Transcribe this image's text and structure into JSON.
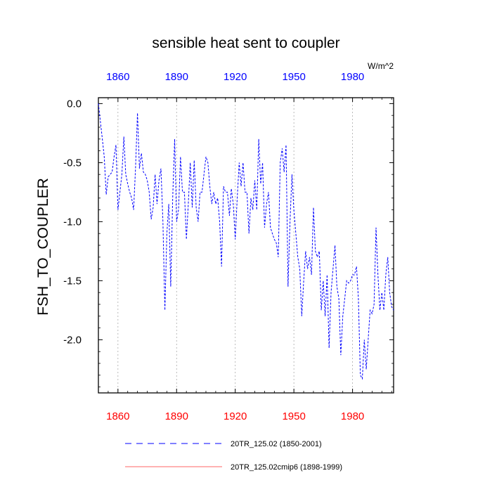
{
  "chart_data": {
    "type": "line",
    "title": "sensible heat sent to coupler",
    "units": "W/m^2",
    "ylabel": "FSH_TO_COUPLER",
    "xlabel": "",
    "xlim": [
      1850,
      2001
    ],
    "ylim": [
      -2.45,
      0.05
    ],
    "x_ticks": [
      1860,
      1890,
      1920,
      1950,
      1980
    ],
    "x_tick_labels": [
      "1860",
      "1890",
      "1920",
      "1950",
      "1980"
    ],
    "y_ticks": [
      0.0,
      -0.5,
      -1.0,
      -1.5,
      -2.0
    ],
    "y_tick_labels": [
      "0.0",
      "-0.5",
      "-1.0",
      "-1.5",
      "-2.0"
    ],
    "grid": "vertical dotted at x ticks",
    "top_tick_color": "#0000ff",
    "bottom_tick_color": "#ff0000",
    "series": [
      {
        "name": "20TR_125.02 (1850-2001)",
        "color": "#0000ff",
        "style": "dashed",
        "x": [
          1850,
          1851,
          1852,
          1853,
          1854,
          1855,
          1856,
          1857,
          1858,
          1859,
          1860,
          1861,
          1862,
          1863,
          1864,
          1865,
          1866,
          1867,
          1868,
          1869,
          1870,
          1871,
          1872,
          1873,
          1874,
          1875,
          1876,
          1877,
          1878,
          1879,
          1880,
          1881,
          1882,
          1883,
          1884,
          1885,
          1886,
          1887,
          1888,
          1889,
          1890,
          1891,
          1892,
          1893,
          1894,
          1895,
          1896,
          1897,
          1898,
          1899,
          1900,
          1901,
          1902,
          1903,
          1904,
          1905,
          1906,
          1907,
          1908,
          1909,
          1910,
          1911,
          1912,
          1913,
          1914,
          1915,
          1916,
          1917,
          1918,
          1919,
          1920,
          1921,
          1922,
          1923,
          1924,
          1925,
          1926,
          1927,
          1928,
          1929,
          1930,
          1931,
          1932,
          1933,
          1934,
          1935,
          1936,
          1937,
          1938,
          1939,
          1940,
          1941,
          1942,
          1943,
          1944,
          1945,
          1946,
          1947,
          1948,
          1949,
          1950,
          1951,
          1952,
          1953,
          1954,
          1955,
          1956,
          1957,
          1958,
          1959,
          1960,
          1961,
          1962,
          1963,
          1964,
          1965,
          1966,
          1967,
          1968,
          1969,
          1970,
          1971,
          1972,
          1973,
          1974,
          1975,
          1976,
          1977,
          1978,
          1979,
          1980,
          1981,
          1982,
          1983,
          1984,
          1985,
          1986,
          1987,
          1988,
          1989,
          1990,
          1991,
          1992,
          1993,
          1994,
          1995,
          1996,
          1997,
          1998,
          1999,
          2000,
          2001
        ],
        "values": [
          0.0,
          -0.15,
          -0.3,
          -0.45,
          -0.77,
          -0.62,
          -0.6,
          -0.58,
          -0.45,
          -0.35,
          -0.9,
          -0.75,
          -0.6,
          -0.28,
          -0.6,
          -0.68,
          -0.75,
          -0.8,
          -0.9,
          -0.55,
          -0.08,
          -0.55,
          -0.42,
          -0.58,
          -0.6,
          -0.65,
          -0.75,
          -0.98,
          -0.88,
          -0.6,
          -0.85,
          -0.65,
          -0.55,
          -1.0,
          -1.75,
          -1.1,
          -0.85,
          -1.55,
          -0.8,
          -0.3,
          -1.0,
          -0.9,
          -0.45,
          -0.75,
          -0.75,
          -1.15,
          -0.85,
          -0.5,
          -0.88,
          -0.48,
          -0.88,
          -1.0,
          -0.75,
          -0.75,
          -0.6,
          -0.45,
          -0.5,
          -0.7,
          -0.85,
          -0.75,
          -0.85,
          -0.8,
          -1.0,
          -1.38,
          -0.7,
          -0.75,
          -0.75,
          -0.95,
          -0.72,
          -0.85,
          -1.15,
          -0.8,
          -0.5,
          -0.7,
          -0.5,
          -0.75,
          -0.75,
          -1.1,
          -0.8,
          -0.9,
          -0.65,
          -0.9,
          -0.3,
          -0.68,
          -0.5,
          -1.05,
          -0.85,
          -0.75,
          -1.05,
          -1.1,
          -1.15,
          -1.18,
          -1.3,
          -0.5,
          -0.38,
          -0.58,
          -0.35,
          -1.55,
          -1.0,
          -0.6,
          -0.9,
          -1.1,
          -1.3,
          -1.4,
          -1.8,
          -1.5,
          -1.25,
          -1.4,
          -1.3,
          -1.45,
          -0.88,
          -1.25,
          -1.3,
          -1.25,
          -1.75,
          -1.5,
          -1.8,
          -1.45,
          -2.07,
          -1.6,
          -1.4,
          -1.2,
          -1.55,
          -1.65,
          -2.13,
          -1.8,
          -1.65,
          -1.5,
          -1.52,
          -1.5,
          -1.45,
          -1.45,
          -1.38,
          -1.65,
          -2.3,
          -2.33,
          -2.0,
          -2.25,
          -2.0,
          -1.75,
          -1.78,
          -1.7,
          -1.05,
          -1.45,
          -1.75,
          -1.6,
          -1.75,
          -1.45,
          -1.3,
          -1.6,
          -1.72,
          -1.75
        ]
      },
      {
        "name": "20TR_125.02cmip6 (1898-1999)",
        "color": "#ff0000",
        "style": "solid",
        "x": [],
        "values": []
      }
    ],
    "legend_placement": "bottom"
  }
}
